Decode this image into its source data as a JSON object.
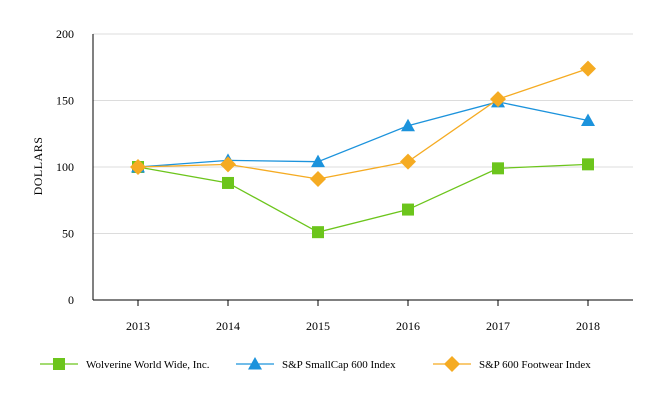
{
  "chart_data": {
    "type": "line",
    "title": "",
    "xlabel": "",
    "ylabel": "DOLLARS",
    "categories": [
      "2013",
      "2014",
      "2015",
      "2016",
      "2017",
      "2018"
    ],
    "ylim": [
      0,
      200
    ],
    "yticks": [
      0,
      50,
      100,
      150,
      200
    ],
    "grid": true,
    "legend_position": "bottom",
    "series": [
      {
        "name": "Wolverine World Wide, Inc.",
        "color": "#6cc51c",
        "marker": "square",
        "values": [
          100,
          88,
          51,
          68,
          99,
          102
        ]
      },
      {
        "name": "S&P SmallCap 600 Index",
        "color": "#1c93dc",
        "marker": "triangle",
        "values": [
          100,
          105,
          104,
          131,
          149,
          135
        ]
      },
      {
        "name": "S&P 600 Footwear Index",
        "color": "#f5ab22",
        "marker": "diamond",
        "values": [
          100,
          102,
          91,
          104,
          151,
          174
        ]
      }
    ]
  }
}
